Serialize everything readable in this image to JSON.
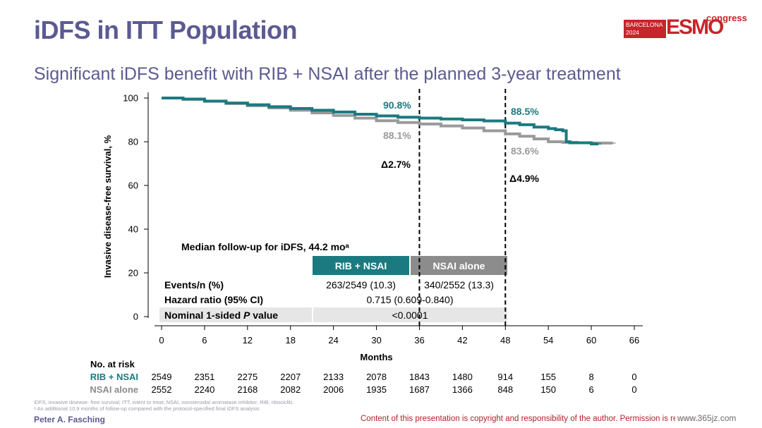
{
  "slide": {
    "title": "iDFS in ITT Population",
    "subtitle": "Significant iDFS benefit with RIB + NSAI after the planned 3-year treatment",
    "logo": {
      "box_line1": "BARCELONA",
      "box_line2": "2024",
      "wordmark": "ESMO",
      "suffix": "congress",
      "color": "#c8242b"
    },
    "footnote_line1": "iDFS, invasive disease- free survival; ITT, intent to treat; NSAI, nonsteroidal aromatase inhibitor; RIB, ribociclib.",
    "footnote_line2": "ᵃ An additional 10.9 months of follow-up compared with the protocol-specified final iDFS analysis",
    "presenter": "Peter A. Fasching",
    "copyright": "Content of this presentation is copyright and responsibility of the author. Permission is required",
    "watermark": "www.365jz.com"
  },
  "chart_data": {
    "type": "line",
    "ylabel": "Invasive disease-free survival, %",
    "xlabel": "Months",
    "xlim": [
      0,
      66
    ],
    "ylim": [
      0,
      100
    ],
    "xticks": [
      0,
      6,
      12,
      18,
      24,
      30,
      36,
      42,
      48,
      54,
      60,
      66
    ],
    "yticks": [
      0,
      20,
      40,
      60,
      80,
      100
    ],
    "reference_lines_x": [
      36,
      48
    ],
    "series": [
      {
        "name": "RIB + NSAI",
        "color": "#1a7a80",
        "x": [
          0,
          3,
          6,
          9,
          12,
          15,
          18,
          21,
          24,
          27,
          30,
          33,
          36,
          39,
          42,
          45,
          48,
          50,
          52,
          54,
          55,
          56,
          56.5,
          57,
          60,
          61
        ],
        "y": [
          100,
          99.5,
          98.6,
          97.7,
          96.9,
          96.0,
          95.2,
          94.4,
          93.6,
          92.6,
          91.8,
          91.2,
          90.8,
          90.4,
          90.0,
          89.5,
          88.5,
          87.8,
          86.7,
          86.0,
          85.5,
          85.0,
          80.0,
          79.5,
          79.0,
          79.0
        ]
      },
      {
        "name": "NSAI alone",
        "color": "#9a9a9a",
        "x": [
          0,
          3,
          6,
          9,
          12,
          15,
          18,
          21,
          24,
          27,
          30,
          33,
          36,
          39,
          42,
          45,
          48,
          50,
          52,
          54,
          56,
          58,
          60,
          62,
          63
        ],
        "y": [
          100,
          99.4,
          98.5,
          97.5,
          96.5,
          95.5,
          94.4,
          93.2,
          92.0,
          90.8,
          89.6,
          88.8,
          88.1,
          87.2,
          86.3,
          85.0,
          83.6,
          82.5,
          81.3,
          80.0,
          79.7,
          79.5,
          79.4,
          79.4,
          79.4
        ]
      }
    ],
    "annotations": {
      "rib_36": "90.8%",
      "nsai_36": "88.1%",
      "delta_36": "Δ2.7%",
      "rib_48": "88.5%",
      "nsai_48": "83.6%",
      "delta_48": "Δ4.9%"
    },
    "inset_table": {
      "header": "Median follow-up for iDFS, 44.2 moᵃ",
      "col_rib": "RIB + NSAI",
      "col_nsai": "NSAI alone",
      "col_rib_color": "#1a7a80",
      "col_nsai_color": "#8c8c8c",
      "rows": [
        {
          "label": "Events/n (%)",
          "rib": "263/2549 (10.3)",
          "nsai": "340/2552 (13.3)"
        },
        {
          "label": "Hazard ratio (95% CI)",
          "combined": "0.715 (0.609-0.840)"
        },
        {
          "label_prefix": "Nominal 1-sided ",
          "label_italic": "P",
          "label_suffix": " value",
          "combined": "<0.0001"
        }
      ]
    },
    "risk_table": {
      "title": "No. at risk",
      "rows": [
        {
          "name": "RIB + NSAI",
          "color": "#1a7a80",
          "values": [
            "2549",
            "2351",
            "2275",
            "2207",
            "2133",
            "2078",
            "1843",
            "1480",
            "914",
            "155",
            "8",
            "0"
          ]
        },
        {
          "name": "NSAI alone",
          "color": "#8c8c8c",
          "values": [
            "2552",
            "2240",
            "2168",
            "2082",
            "2006",
            "1935",
            "1687",
            "1366",
            "848",
            "150",
            "6",
            "0"
          ]
        }
      ]
    }
  }
}
